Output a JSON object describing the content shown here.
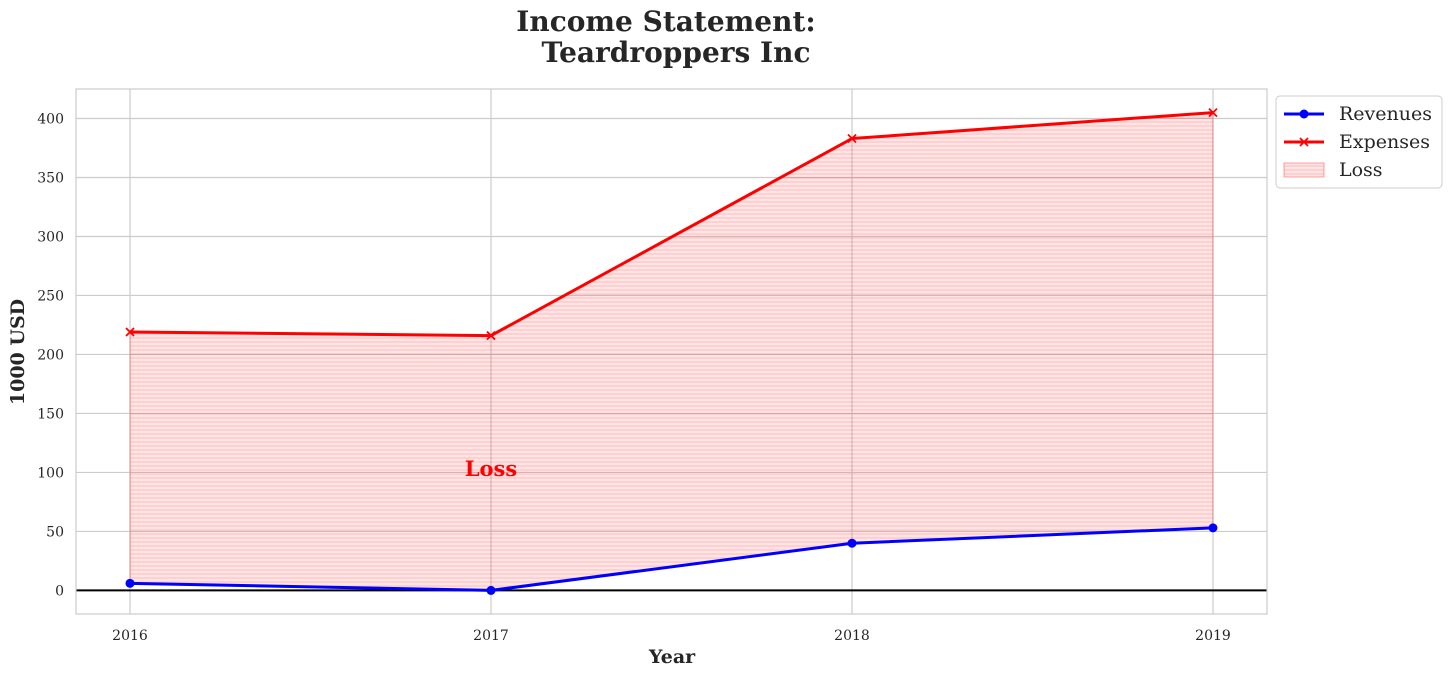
{
  "chart_data": {
    "type": "line",
    "title_line1": "Income Statement:",
    "title_line2": "Teardroppers Inc",
    "xlabel": "Year",
    "ylabel": "1000 USD",
    "x": [
      "2016",
      "2017",
      "2018",
      "2019"
    ],
    "ylim": [
      -20,
      425
    ],
    "yticks": [
      0,
      50,
      100,
      150,
      200,
      250,
      300,
      350,
      400
    ],
    "grid": true,
    "legend_position": "outside-top-right",
    "series": [
      {
        "name": "Revenues",
        "values": [
          6,
          0,
          40,
          53
        ],
        "color": "#0000ff",
        "marker": "circle"
      },
      {
        "name": "Expenses",
        "values": [
          219,
          216,
          383,
          405
        ],
        "color": "#ff0000",
        "marker": "x"
      }
    ],
    "fill": {
      "name": "Loss",
      "between": [
        "Expenses",
        "Revenues"
      ],
      "color": "#ff0000"
    },
    "annotation": {
      "text": "Loss",
      "x": "2017",
      "y": 103,
      "color": "#ff0000"
    },
    "zero_line": true
  }
}
